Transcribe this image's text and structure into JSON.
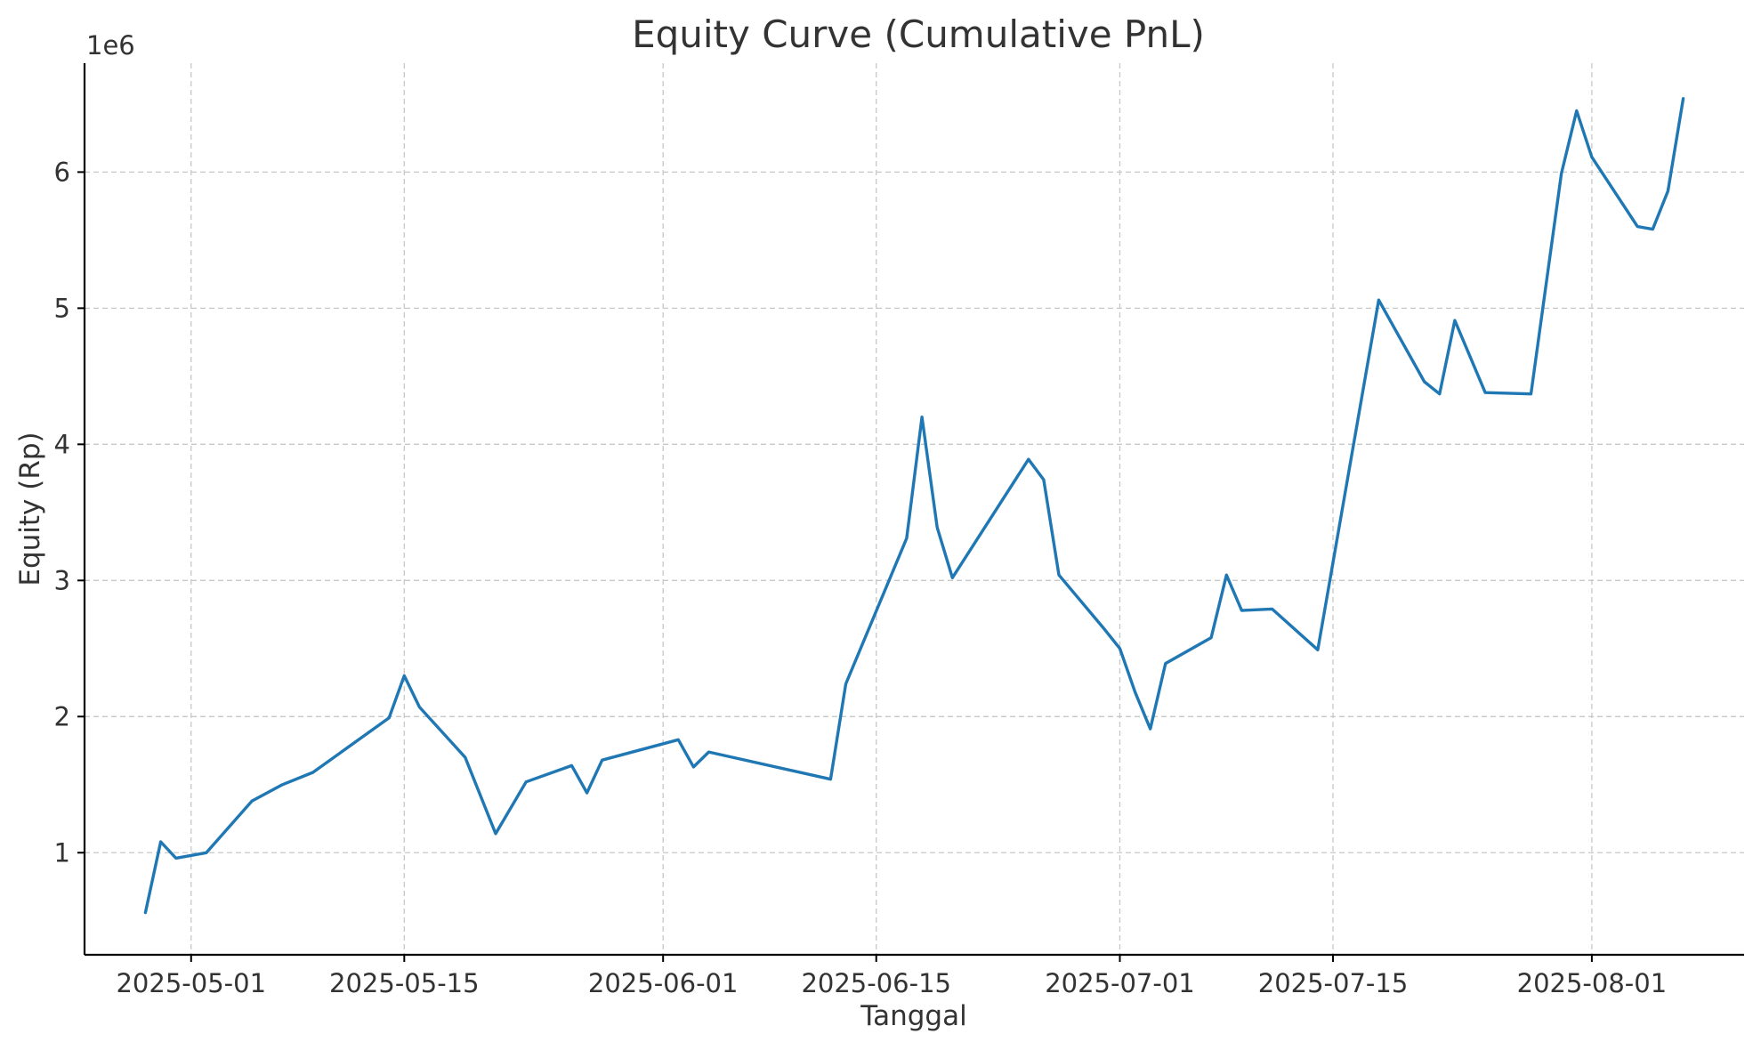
{
  "chart_data": {
    "type": "line",
    "title": "Equity Curve (Cumulative PnL)",
    "xlabel": "Tanggal",
    "ylabel": "Equity (Rp)",
    "y_offset_label": "1e6",
    "x_type": "date",
    "xlim": [
      "2025-04-24",
      "2025-08-11"
    ],
    "ylim": [
      250000,
      6800000
    ],
    "grid": true,
    "x_ticks": [
      {
        "value": "2025-05-01",
        "label": "2025-05-01"
      },
      {
        "value": "2025-05-15",
        "label": "2025-05-15"
      },
      {
        "value": "2025-06-01",
        "label": "2025-06-01"
      },
      {
        "value": "2025-06-15",
        "label": "2025-06-15"
      },
      {
        "value": "2025-07-01",
        "label": "2025-07-01"
      },
      {
        "value": "2025-07-15",
        "label": "2025-07-15"
      },
      {
        "value": "2025-08-01",
        "label": "2025-08-01"
      }
    ],
    "y_ticks": [
      {
        "value": 1000000,
        "label": "1"
      },
      {
        "value": 2000000,
        "label": "2"
      },
      {
        "value": 3000000,
        "label": "3"
      },
      {
        "value": 4000000,
        "label": "4"
      },
      {
        "value": 5000000,
        "label": "5"
      },
      {
        "value": 6000000,
        "label": "6"
      }
    ],
    "series": [
      {
        "color": "#1f77b4",
        "x": [
          "2025-04-28",
          "2025-04-29",
          "2025-04-30",
          "2025-05-02",
          "2025-05-05",
          "2025-05-07",
          "2025-05-09",
          "2025-05-14",
          "2025-05-15",
          "2025-05-16",
          "2025-05-19",
          "2025-05-21",
          "2025-05-23",
          "2025-05-26",
          "2025-05-27",
          "2025-05-28",
          "2025-06-02",
          "2025-06-03",
          "2025-06-04",
          "2025-06-12",
          "2025-06-13",
          "2025-06-17",
          "2025-06-18",
          "2025-06-19",
          "2025-06-20",
          "2025-06-25",
          "2025-06-26",
          "2025-06-27",
          "2025-06-30",
          "2025-07-01",
          "2025-07-02",
          "2025-07-03",
          "2025-07-04",
          "2025-07-07",
          "2025-07-08",
          "2025-07-09",
          "2025-07-11",
          "2025-07-14",
          "2025-07-18",
          "2025-07-21",
          "2025-07-22",
          "2025-07-23",
          "2025-07-25",
          "2025-07-28",
          "2025-07-30",
          "2025-07-31",
          "2025-08-01",
          "2025-08-04",
          "2025-08-05",
          "2025-08-06",
          "2025-08-07"
        ],
        "y": [
          560000,
          1080000,
          960000,
          1000000,
          1380000,
          1500000,
          1590000,
          1990000,
          2300000,
          2070000,
          1700000,
          1140000,
          1520000,
          1640000,
          1440000,
          1680000,
          1830000,
          1630000,
          1740000,
          1540000,
          2240000,
          3310000,
          4200000,
          3390000,
          3020000,
          3890000,
          3740000,
          3040000,
          2640000,
          2500000,
          2180000,
          1910000,
          2390000,
          2580000,
          3040000,
          2780000,
          2790000,
          2490000,
          5060000,
          4460000,
          4370000,
          4910000,
          4380000,
          4370000,
          5990000,
          6450000,
          6110000,
          5600000,
          5580000,
          5860000,
          6540000
        ]
      }
    ]
  }
}
